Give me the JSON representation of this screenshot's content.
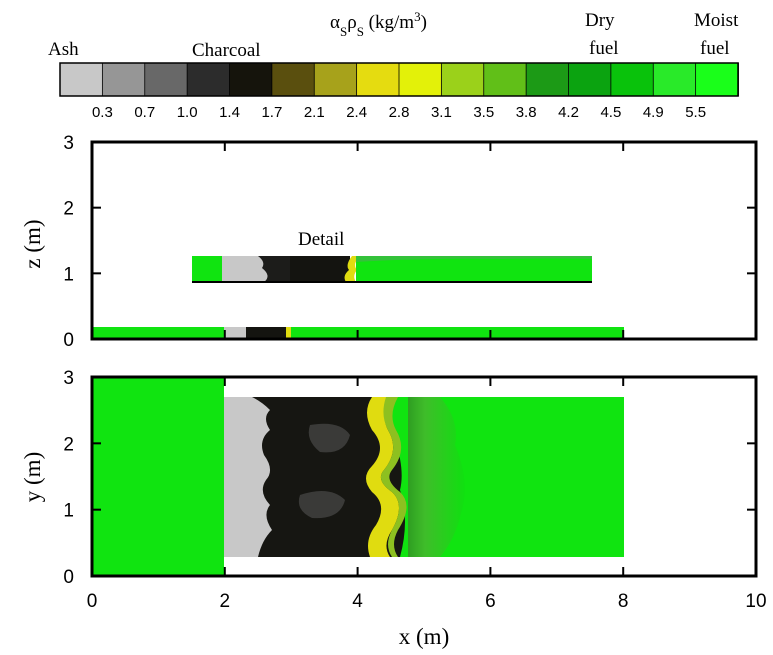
{
  "colorbar": {
    "title": "α",
    "title_sub1": "S",
    "title_mid": "ρ",
    "title_sub2": "S",
    "title_unit": " (kg/m",
    "title_sup": "3",
    "title_close": ")",
    "labels": [
      {
        "key": "ash",
        "line1": "Ash",
        "line2": ""
      },
      {
        "key": "charcoal",
        "line1": "Charcoal",
        "line2": ""
      },
      {
        "key": "dry",
        "line1": "Dry",
        "line2": "fuel"
      },
      {
        "key": "moist",
        "line1": "Moist",
        "line2": "fuel"
      }
    ],
    "ticks": [
      "0.3",
      "0.7",
      "1.0",
      "1.4",
      "1.7",
      "2.1",
      "2.4",
      "2.8",
      "3.1",
      "3.5",
      "3.8",
      "4.2",
      "4.5",
      "4.9",
      "5.5"
    ],
    "colors": [
      "#c8c8c8",
      "#969696",
      "#686868",
      "#2c2c2c",
      "#15140c",
      "#5a4f0e",
      "#a7a21b",
      "#e5dc10",
      "#e3f109",
      "#9bd11a",
      "#61bf18",
      "#1c9a16",
      "#0ba310",
      "#09c20b",
      "#29ea29",
      "#1aff1a"
    ]
  },
  "chart_data": [
    {
      "type": "heatmap",
      "panel": "side-view",
      "xlabel": "",
      "ylabel": "z (m)",
      "xlim": [
        0,
        10
      ],
      "ylim": [
        0,
        3
      ],
      "yticks": [
        "0",
        "1",
        "2",
        "3"
      ],
      "annotation": "Detail",
      "regions": [
        {
          "name": "upper-fuel-bed",
          "x": [
            1.5,
            7.5
          ],
          "z": [
            0.85,
            1.3
          ]
        },
        {
          "name": "ground-fuel-bed",
          "x": [
            0,
            8
          ],
          "z": [
            0,
            0.18
          ]
        }
      ]
    },
    {
      "type": "heatmap",
      "panel": "top-view",
      "xlabel": "x (m)",
      "ylabel": "y (m)",
      "xlim": [
        0,
        10
      ],
      "ylim": [
        0,
        3
      ],
      "xticks": [
        "0",
        "2",
        "4",
        "6",
        "8",
        "10"
      ],
      "yticks": [
        "0",
        "1",
        "2",
        "3"
      ],
      "regions": [
        {
          "name": "left-unburnt-strip",
          "x": [
            0,
            2
          ],
          "y": [
            0,
            3
          ]
        },
        {
          "name": "fuel-plot",
          "x": [
            2,
            8
          ],
          "y": [
            0.3,
            2.7
          ]
        }
      ]
    }
  ]
}
